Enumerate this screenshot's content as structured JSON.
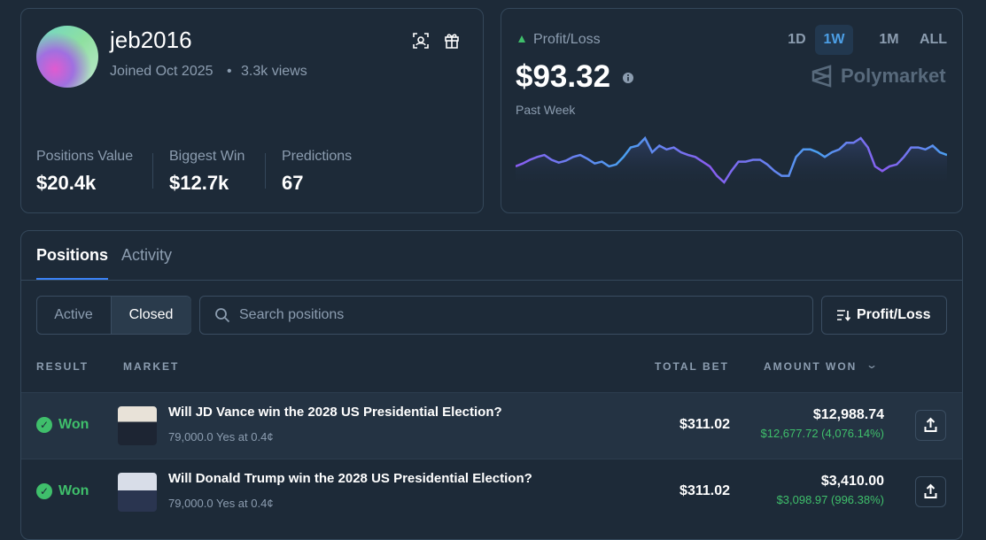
{
  "profile": {
    "username": "jeb2016",
    "joined": "Joined Oct 2025",
    "views": "3.3k views",
    "stats": [
      {
        "label": "Positions Value",
        "value": "$20.4k"
      },
      {
        "label": "Biggest Win",
        "value": "$12.7k"
      },
      {
        "label": "Predictions",
        "value": "67"
      }
    ]
  },
  "profit_loss": {
    "label": "Profit/Loss",
    "amount": "$93.32",
    "period": "Past Week",
    "ranges": [
      "1D",
      "1W",
      "1M",
      "ALL"
    ],
    "active_range": "1W",
    "brand": "Polymarket",
    "sparkline": [
      20,
      23,
      27,
      30,
      32,
      27,
      24,
      26,
      30,
      32,
      28,
      23,
      25,
      20,
      22,
      30,
      40,
      42,
      50,
      35,
      42,
      38,
      40,
      35,
      32,
      30,
      25,
      20,
      10,
      3,
      15,
      25,
      25,
      27,
      27,
      22,
      15,
      10,
      10,
      30,
      38,
      38,
      35,
      30,
      35,
      38,
      45,
      45,
      50,
      40,
      20,
      15,
      20,
      22,
      30,
      40,
      40,
      38,
      42,
      35,
      32
    ]
  },
  "tabs": [
    "Positions",
    "Activity"
  ],
  "active_tab": "Positions",
  "filters": [
    "Active",
    "Closed"
  ],
  "active_filter": "Closed",
  "search_placeholder": "Search positions",
  "sort": "Profit/Loss",
  "table": {
    "columns": [
      "RESULT",
      "MARKET",
      "TOTAL BET",
      "AMOUNT WON"
    ],
    "rows": [
      {
        "result": "Won",
        "market": "Will JD Vance win the 2028 US Presidential Election?",
        "detail": "79,000.0 Yes at 0.4¢",
        "total_bet": "$311.02",
        "amount_won": "$12,988.74",
        "profit": "$12,677.72 (4,076.14%)"
      },
      {
        "result": "Won",
        "market": "Will Donald Trump win the 2028 US Presidential Election?",
        "detail": "79,000.0 Yes at 0.4¢",
        "total_bet": "$311.02",
        "amount_won": "$3,410.00",
        "profit": "$3,098.97 (996.38%)"
      }
    ]
  }
}
